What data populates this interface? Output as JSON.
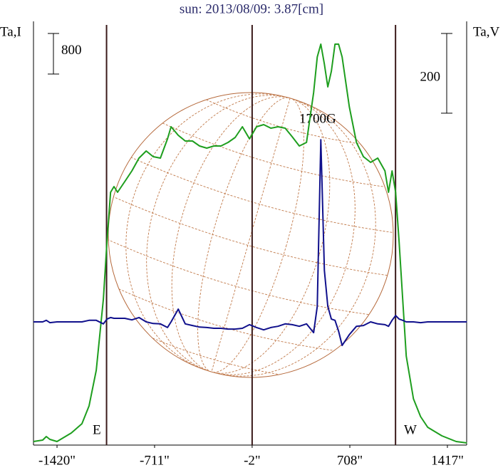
{
  "chart_data": {
    "type": "line",
    "title": "sun: 2013/08/09: 3.87[cm]",
    "y_label": "Ta,I",
    "y2_label": "Ta,V",
    "i_scale_bar": 800,
    "v_scale_bar": 200,
    "annotations": [
      "E",
      "W",
      "1700G"
    ],
    "xlim": [
      -1591,
      1557
    ],
    "xticks": [
      {
        "value": -1420,
        "label": "-1420\""
      },
      {
        "value": -711,
        "label": "-711\""
      },
      {
        "value": -2,
        "label": "-2\""
      },
      {
        "value": 708,
        "label": "708\""
      },
      {
        "value": 1417,
        "label": "1417\""
      }
    ],
    "vertical_lines": [
      -1060,
      -2,
      1040
    ],
    "ylim": [
      0,
      8284
    ],
    "y2lim": [
      -309,
      745
    ],
    "x": [
      -1591,
      -1524,
      -1498,
      -1472,
      -1420,
      -1316,
      -1239,
      -1187,
      -1135,
      -1083,
      -1057,
      -1031,
      -1006,
      -980,
      -928,
      -876,
      -824,
      -772,
      -721,
      -669,
      -617,
      -591,
      -539,
      -488,
      -436,
      -384,
      -332,
      -280,
      -229,
      -177,
      -125,
      -73,
      -21,
      30,
      82,
      134,
      186,
      238,
      289,
      341,
      393,
      445,
      471,
      497,
      523,
      548,
      574,
      600,
      626,
      652,
      704,
      756,
      807,
      859,
      911,
      963,
      989,
      1015,
      1041,
      1066,
      1092,
      1118,
      1170,
      1222,
      1274,
      1377,
      1481,
      1559
    ],
    "series": [
      {
        "color": "#1e9e1e",
        "axis": "y",
        "values": [
          70,
          98,
          168,
          112,
          70,
          239,
          421,
          772,
          1474,
          2878,
          4001,
          4984,
          5097,
          4984,
          5195,
          5405,
          5658,
          5799,
          5686,
          5658,
          6037,
          6276,
          6107,
          5995,
          5995,
          5897,
          5855,
          5897,
          5897,
          5967,
          6065,
          6276,
          6037,
          6276,
          6318,
          6248,
          6276,
          6248,
          6079,
          5897,
          5967,
          6950,
          7652,
          7905,
          7511,
          7062,
          7371,
          7905,
          7905,
          7652,
          6669,
          5967,
          5686,
          5574,
          5658,
          5405,
          4984,
          5405,
          4984,
          4001,
          2878,
          1755,
          913,
          562,
          351,
          183,
          70,
          42
        ]
      },
      {
        "color": "#10108c",
        "axis": "y2",
        "values": [
          0,
          0,
          4,
          -2,
          0,
          0,
          0,
          4,
          4,
          -5,
          7,
          11,
          9,
          9,
          9,
          5,
          11,
          0,
          -4,
          -5,
          -14,
          0,
          32,
          -5,
          -9,
          -13,
          -14,
          -16,
          -16,
          -18,
          -18,
          -16,
          -7,
          -14,
          -20,
          -14,
          -11,
          -5,
          -7,
          -11,
          -5,
          -27,
          39,
          457,
          129,
          39,
          7,
          4,
          -23,
          -59,
          -32,
          -11,
          -9,
          0,
          -5,
          -7,
          -11,
          4,
          16,
          7,
          4,
          0,
          0,
          -2,
          0,
          0,
          0,
          0
        ]
      }
    ]
  }
}
